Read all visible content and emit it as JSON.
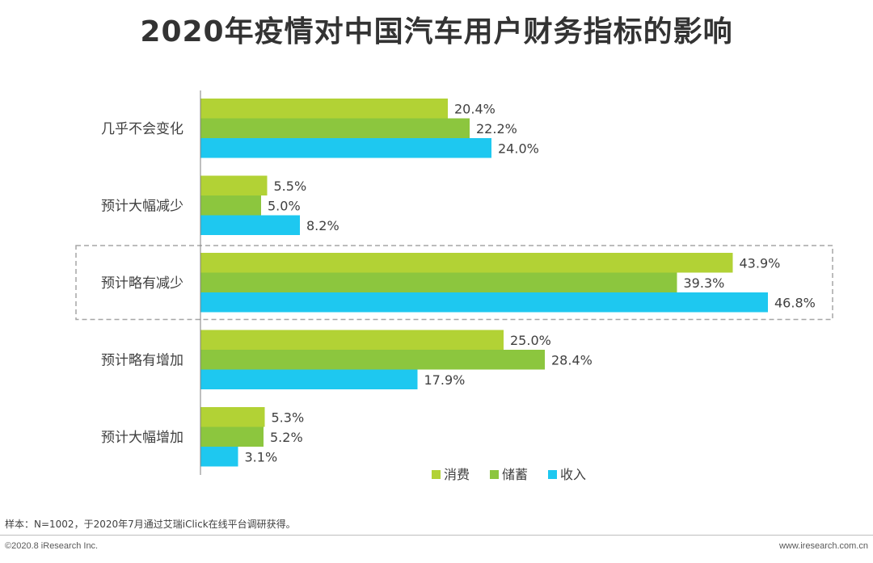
{
  "chart_data": {
    "type": "bar",
    "orientation": "horizontal",
    "title": "2020年疫情对中国汽车用户财务指标的影响",
    "categories": [
      "几乎不会变化",
      "预计大幅减少",
      "预计略有减少",
      "预计略有增加",
      "预计大幅增加"
    ],
    "series": [
      {
        "name": "消费",
        "color": "#b2d235",
        "values": [
          20.4,
          5.5,
          43.9,
          25.0,
          5.3
        ]
      },
      {
        "name": "储蓄",
        "color": "#8cc63e",
        "values": [
          22.2,
          5.0,
          39.3,
          28.4,
          5.2
        ]
      },
      {
        "name": "收入",
        "color": "#1ec8f0",
        "values": [
          24.0,
          8.2,
          46.8,
          17.9,
          3.1
        ]
      }
    ],
    "value_suffix": "%",
    "xlim": [
      0,
      50
    ],
    "highlighted_category": "预计略有减少",
    "legend_position": "bottom-right",
    "grid": false
  },
  "footer": {
    "note": "样本：N=1002，于2020年7月通过艾瑞iClick在线平台调研获得。",
    "copyright": "©2020.8 iResearch Inc.",
    "website": "www.iresearch.com.cn"
  }
}
